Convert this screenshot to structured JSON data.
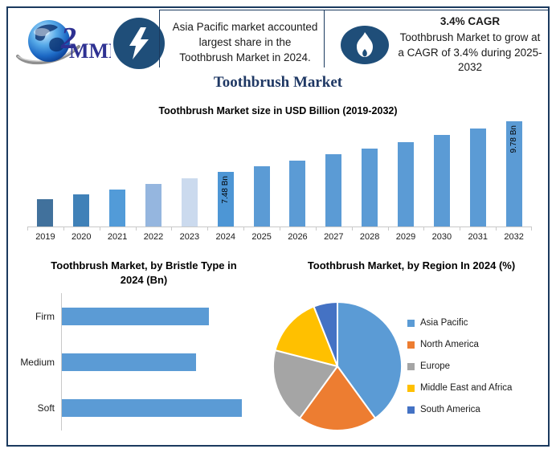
{
  "header": {
    "logo_text": "MMR",
    "logo_mark": "2",
    "logo_icon": "globe-icon",
    "left_icon": "lightning-icon",
    "right_icon": "flame-icon",
    "highlight": "Asia Pacific market accounted largest share in the Toothbrush Market in 2024.",
    "cagr_title": "3.4% CAGR",
    "cagr_text": "Toothbrush Market to grow at a CAGR of 3.4% during 2025-2032"
  },
  "title": "Toothbrush Market",
  "colors": {
    "border_navy": "#1B3A5F",
    "icon_circle": "#1F4E79",
    "title_navy": "#1F3864",
    "bar_blue": "#5B9BD5",
    "axis_gray": "#C9C9C9"
  },
  "chart_data": [
    {
      "type": "bar",
      "title": "Toothbrush Market size in USD Billion (2019-2032)",
      "categories": [
        "2019",
        "2020",
        "2021",
        "2022",
        "2023",
        "2024",
        "2025",
        "2026",
        "2027",
        "2028",
        "2029",
        "2030",
        "2031",
        "2032"
      ],
      "values": [
        6.25,
        6.45,
        6.67,
        6.92,
        7.17,
        7.48,
        7.73,
        8.0,
        8.27,
        8.55,
        8.84,
        9.14,
        9.45,
        9.78
      ],
      "unit": "USD Bn",
      "data_labels": [
        "",
        "",
        "",
        "",
        "",
        "7.48 Bn",
        "",
        "",
        "",
        "",
        "",
        "",
        "",
        "9.78 Bn"
      ],
      "bar_colors": [
        "#41719C",
        "#4081B8",
        "#529BD8",
        "#95B6DF",
        "#CBDAEE",
        "#4D96D5",
        "#5B9BD5",
        "#5B9BD5",
        "#5B9BD5",
        "#5B9BD5",
        "#5B9BD5",
        "#5B9BD5",
        "#5B9BD5",
        "#5B9BD5"
      ],
      "ylim": [
        5.0,
        10.1
      ],
      "grid": false,
      "legend": false
    },
    {
      "type": "bar",
      "orientation": "horizontal",
      "title": "Toothbrush Market, by Bristle Type in 2024 (Bn)",
      "categories": [
        "Firm",
        "Medium",
        "Soft"
      ],
      "values": [
        2.38,
        2.18,
        2.92
      ],
      "color": "#5B9BD5",
      "xlim": [
        0,
        3.1
      ],
      "grid": false,
      "legend": false
    },
    {
      "type": "pie",
      "title": "Toothbrush Market, by Region In 2024 (%)",
      "labels": [
        "Asia Pacific",
        "North America",
        "Europe",
        "Middle East and Africa",
        "South America"
      ],
      "values": [
        40,
        20,
        19,
        15,
        6
      ],
      "colors": [
        "#5B9BD5",
        "#ED7D31",
        "#A5A5A5",
        "#FFC000",
        "#4472C4"
      ],
      "legend_position": "right"
    }
  ]
}
